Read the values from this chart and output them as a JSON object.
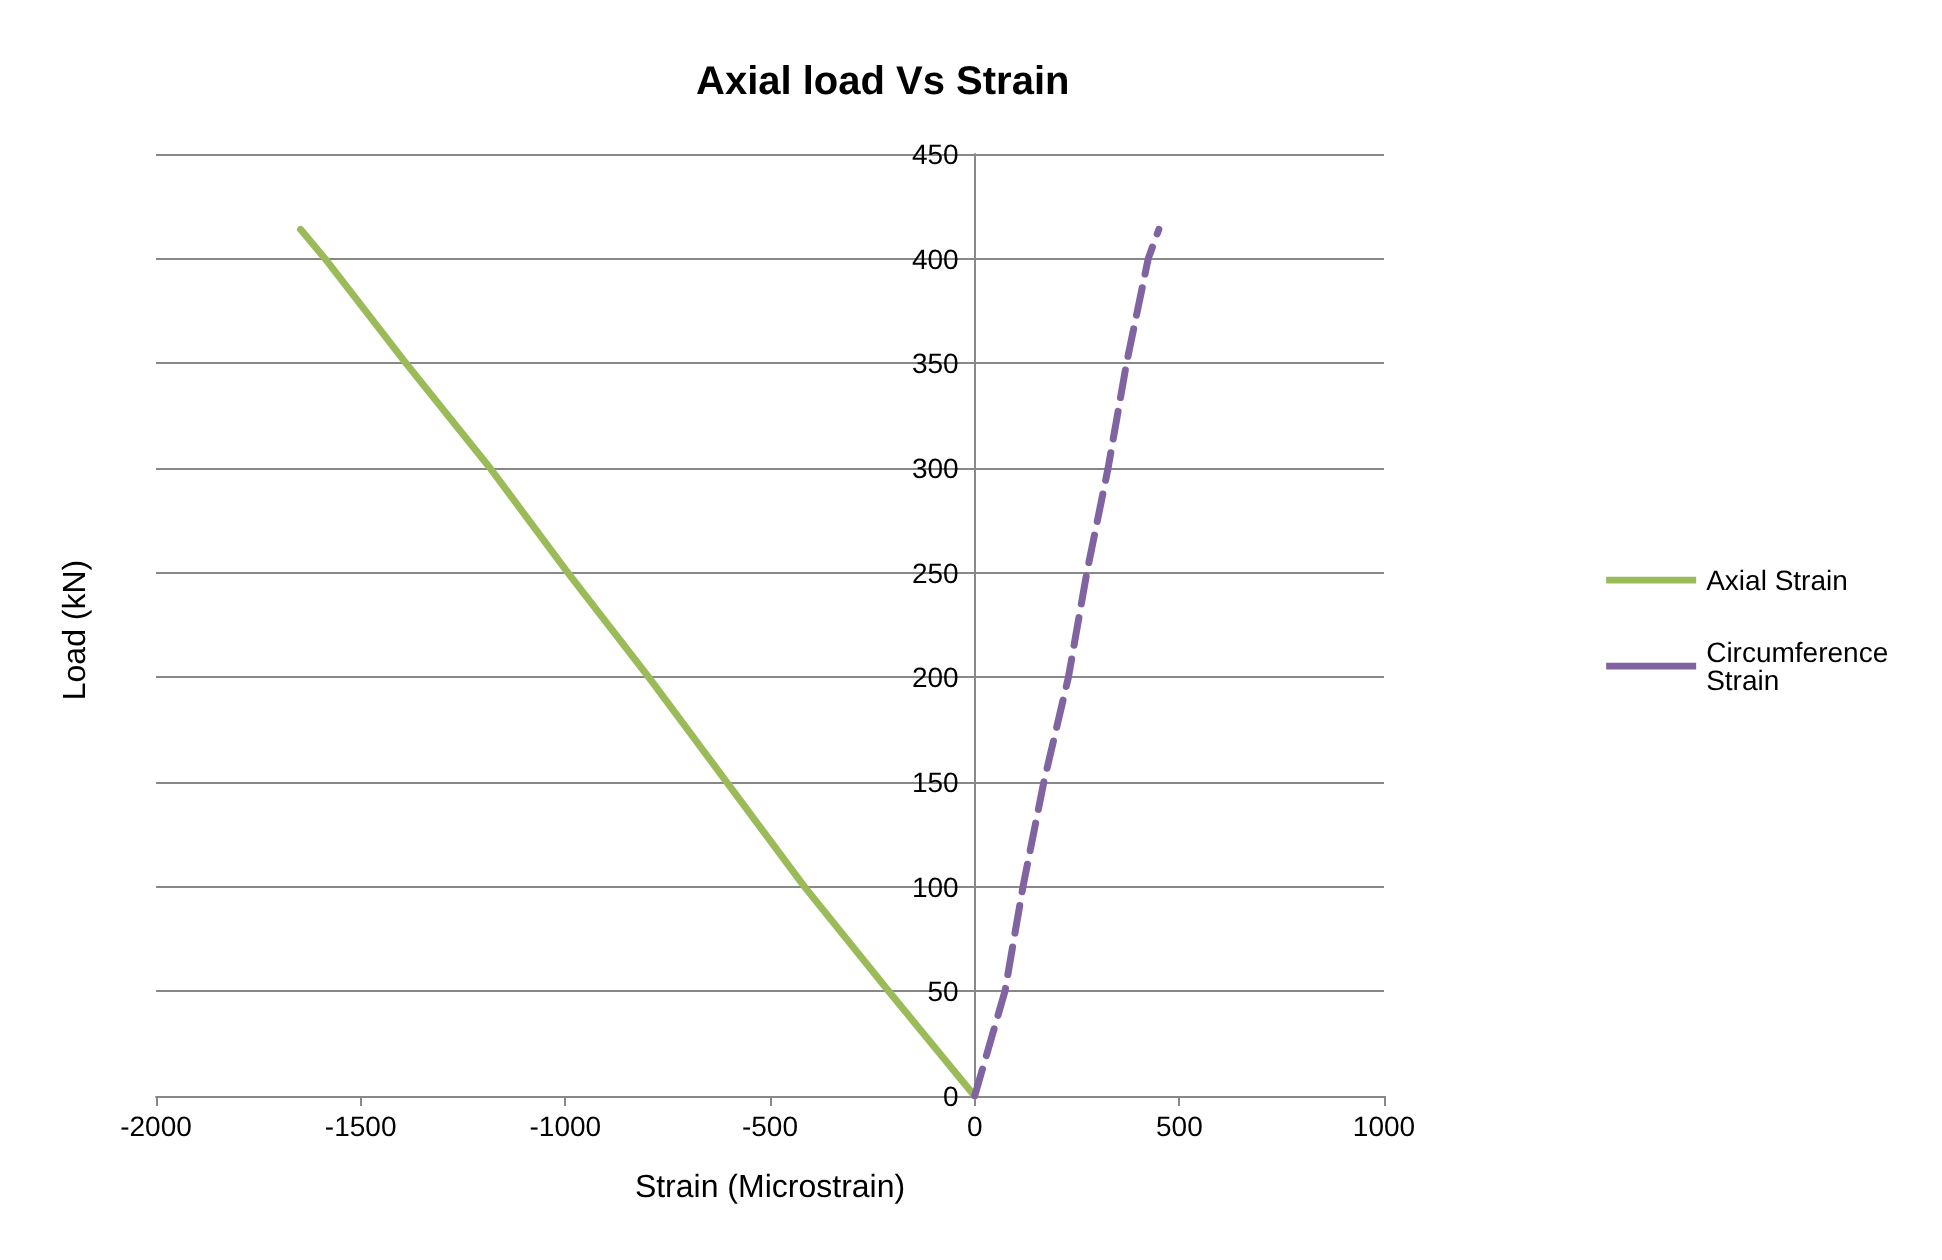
{
  "chart_data": {
    "type": "line",
    "title": "Axial load Vs Strain",
    "xlabel": "Strain (Microstrain)",
    "ylabel": "Load (kN)",
    "xlim": [
      -2000,
      1000
    ],
    "xticks": [
      -2000,
      -1500,
      -1000,
      -500,
      0,
      500,
      1000
    ],
    "ylim": [
      0,
      450
    ],
    "yticks": [
      0,
      50,
      100,
      150,
      200,
      250,
      300,
      350,
      400,
      450
    ],
    "grid": "y",
    "legend": "right",
    "marker": "none",
    "series": [
      {
        "name": "Axial Strain",
        "color": "#9bbb59",
        "line_style": "solid",
        "x": [
          0,
          -210,
          -416,
          -796,
          -994,
          -1184,
          -1389,
          -1587,
          -1647
        ],
        "values": [
          0,
          50,
          100,
          200,
          250,
          300,
          350,
          400,
          414
        ]
      },
      {
        "name": "Circumference Strain",
        "color": "#8064a2",
        "line_style": "dashed",
        "x": [
          0,
          74,
          118,
          169,
          229,
          274,
          326,
          371,
          424,
          450
        ],
        "values": [
          0,
          50,
          100,
          150,
          200,
          250,
          300,
          350,
          400,
          414
        ]
      }
    ]
  }
}
